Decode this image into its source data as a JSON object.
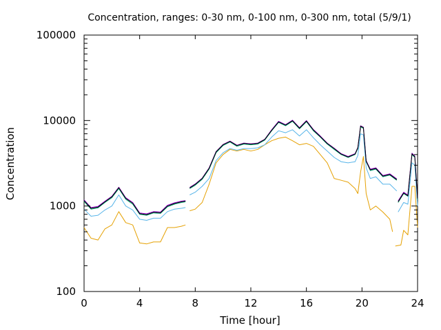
{
  "chart_data": {
    "type": "line",
    "title": "Concentration, ranges: 0-30 nm, 0-100 nm, 0-300 nm, total (5/9/1)",
    "xlabel": "Time [hour]",
    "ylabel": "Concentration",
    "xlim": [
      0,
      24
    ],
    "ylim": [
      100,
      100000
    ],
    "yscale": "log",
    "xticks": [
      0,
      4,
      8,
      12,
      16,
      20,
      24
    ],
    "yticks": [
      100,
      1000,
      10000,
      100000
    ],
    "xtick_labels": [
      "0",
      "4",
      "8",
      "12",
      "16",
      "20",
      "24"
    ],
    "ytick_labels": [
      "100",
      "1000",
      "10000",
      "100000"
    ],
    "grid": false,
    "legend": "none",
    "series": [
      {
        "color": "#e5a000",
        "x": [
          0,
          0.5,
          1,
          1.5,
          2,
          2.5,
          3,
          3.5,
          4,
          4.5,
          5,
          5.5,
          6,
          6.5,
          7,
          7.3,
          null,
          7.6,
          8,
          8.5,
          9,
          9.5,
          10,
          10.5,
          11,
          11.5,
          12,
          12.5,
          13,
          13.5,
          14,
          14.5,
          15,
          15.5,
          16,
          16.5,
          17,
          17.5,
          18,
          18.5,
          19,
          19.5,
          19.7,
          19.9,
          20.1,
          20.3,
          20.6,
          21,
          21.5,
          22,
          22.2,
          null,
          22.4,
          22.8,
          23,
          23.3,
          23.6,
          23.8,
          24
        ],
        "y": [
          560,
          420,
          400,
          540,
          600,
          860,
          640,
          600,
          370,
          360,
          380,
          380,
          560,
          560,
          580,
          600,
          null,
          880,
          920,
          1100,
          1800,
          3200,
          4000,
          4600,
          4400,
          4600,
          4400,
          4600,
          5200,
          5800,
          6200,
          6400,
          5800,
          5200,
          5400,
          5000,
          4000,
          3200,
          2100,
          2000,
          1900,
          1600,
          1400,
          2500,
          3800,
          1400,
          900,
          1000,
          850,
          700,
          500,
          null,
          340,
          350,
          520,
          460,
          1700,
          1700,
          560
        ]
      },
      {
        "color": "#56b4e9",
        "x": [
          0,
          0.5,
          1,
          1.5,
          2,
          2.5,
          3,
          3.5,
          4,
          4.5,
          5,
          5.5,
          6,
          6.5,
          7,
          7.3,
          null,
          7.6,
          8,
          8.5,
          9,
          9.5,
          10,
          10.5,
          11,
          11.5,
          12,
          12.5,
          13,
          13.5,
          14,
          14.5,
          15,
          15.5,
          16,
          16.5,
          17,
          17.5,
          18,
          18.5,
          19,
          19.5,
          19.7,
          19.9,
          20.1,
          20.3,
          20.6,
          21,
          21.5,
          22,
          22.5,
          null,
          22.6,
          23,
          23.3,
          23.6,
          23.8,
          24
        ],
        "y": [
          920,
          760,
          780,
          900,
          1000,
          1350,
          1000,
          900,
          700,
          680,
          720,
          720,
          860,
          920,
          940,
          960,
          null,
          1350,
          1450,
          1700,
          2100,
          3400,
          4200,
          4700,
          4500,
          4700,
          4700,
          4800,
          5200,
          6400,
          7600,
          7200,
          7800,
          6600,
          7800,
          6300,
          5200,
          4400,
          3700,
          3300,
          3200,
          3300,
          3900,
          7000,
          6800,
          2800,
          2100,
          2200,
          1800,
          1800,
          1500,
          null,
          850,
          1100,
          1050,
          3200,
          3000,
          1000
        ]
      },
      {
        "color": "#009e73",
        "x": [
          0,
          0.5,
          1,
          1.5,
          2,
          2.5,
          3,
          3.5,
          4,
          4.5,
          5,
          5.5,
          6,
          6.5,
          7,
          7.3,
          null,
          7.6,
          8,
          8.5,
          9,
          9.5,
          10,
          10.5,
          11,
          11.5,
          12,
          12.5,
          13,
          13.5,
          14,
          14.5,
          15,
          15.5,
          16,
          16.5,
          17,
          17.5,
          18,
          18.5,
          19,
          19.5,
          19.7,
          19.9,
          20.1,
          20.3,
          20.6,
          21,
          21.5,
          22,
          22.5,
          null,
          22.6,
          23,
          23.3,
          23.6,
          23.8,
          24
        ],
        "y": [
          1130,
          920,
          950,
          1100,
          1250,
          1600,
          1200,
          1050,
          800,
          780,
          830,
          820,
          980,
          1050,
          1100,
          1120,
          null,
          1600,
          1750,
          2050,
          2700,
          4200,
          5100,
          5600,
          5000,
          5300,
          5200,
          5300,
          5900,
          7600,
          9500,
          8700,
          9800,
          8000,
          9700,
          7600,
          6400,
          5300,
          4600,
          4000,
          3700,
          4000,
          4700,
          8400,
          8100,
          3300,
          2600,
          2700,
          2200,
          2300,
          2000,
          null,
          1100,
          1400,
          1300,
          4000,
          3700,
          1200
        ]
      },
      {
        "color": "#9400d3",
        "x": [
          0,
          0.5,
          1,
          1.5,
          2,
          2.5,
          3,
          3.5,
          4,
          4.5,
          5,
          5.5,
          6,
          6.5,
          7,
          7.3,
          null,
          7.6,
          8,
          8.5,
          9,
          9.5,
          10,
          10.5,
          11,
          11.5,
          12,
          12.5,
          13,
          13.5,
          14,
          14.5,
          15,
          15.5,
          16,
          16.5,
          17,
          17.5,
          18,
          18.5,
          19,
          19.5,
          19.7,
          19.9,
          20.1,
          20.3,
          20.6,
          21,
          21.5,
          22,
          22.5,
          null,
          22.6,
          23,
          23.3,
          23.6,
          23.8,
          24
        ],
        "y": [
          1180,
          960,
          990,
          1140,
          1300,
          1660,
          1250,
          1100,
          830,
          810,
          860,
          850,
          1020,
          1090,
          1140,
          1160,
          null,
          1650,
          1810,
          2120,
          2800,
          4350,
          5250,
          5750,
          5150,
          5450,
          5350,
          5450,
          6050,
          7800,
          9800,
          8950,
          10100,
          8250,
          10000,
          7850,
          6600,
          5450,
          4750,
          4100,
          3800,
          4100,
          4850,
          8700,
          8350,
          3400,
          2700,
          2800,
          2280,
          2380,
          2080,
          null,
          1150,
          1450,
          1350,
          4150,
          3850,
          1250
        ]
      },
      {
        "color": "#000000",
        "x": [
          0,
          0.5,
          1,
          1.5,
          2,
          2.5,
          3,
          3.5,
          4,
          4.5,
          5,
          5.5,
          6,
          6.5,
          7,
          7.3,
          null,
          7.6,
          8,
          8.5,
          9,
          9.5,
          10,
          10.5,
          11,
          11.5,
          12,
          12.5,
          13,
          13.5,
          14,
          14.5,
          15,
          15.5,
          16,
          16.5,
          17,
          17.5,
          18,
          18.5,
          19,
          19.5,
          19.7,
          19.9,
          20.1,
          20.3,
          20.6,
          21,
          21.5,
          22,
          22.5,
          null,
          22.6,
          23,
          23.3,
          23.6,
          23.8,
          24
        ],
        "y": [
          1160,
          940,
          970,
          1120,
          1280,
          1640,
          1230,
          1080,
          815,
          795,
          845,
          835,
          1000,
          1070,
          1120,
          1140,
          null,
          1630,
          1790,
          2100,
          2760,
          4300,
          5200,
          5700,
          5100,
          5400,
          5300,
          5400,
          6000,
          7700,
          9650,
          8850,
          9950,
          8150,
          9850,
          7750,
          6500,
          5400,
          4700,
          4050,
          3750,
          4050,
          4800,
          8600,
          8250,
          3350,
          2650,
          2750,
          2240,
          2340,
          2040,
          null,
          1120,
          1420,
          1320,
          4080,
          3780,
          1220
        ]
      }
    ]
  }
}
